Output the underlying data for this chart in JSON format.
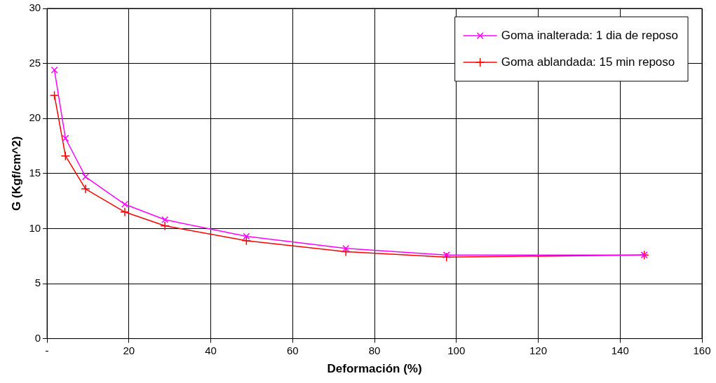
{
  "chart_data": {
    "type": "line",
    "xlabel": "Deformación (%)",
    "ylabel": "G (Kgf/cm^2)",
    "xlim": [
      0,
      160
    ],
    "xticks": [
      {
        "value": 0,
        "label": "-"
      },
      20,
      40,
      60,
      80,
      100,
      120,
      140,
      160
    ],
    "ylim": [
      0,
      30
    ],
    "yticks": [
      0,
      5,
      10,
      15,
      20,
      25,
      30
    ],
    "grid": true,
    "legend": "top right",
    "line_style": "solid",
    "series": [
      {
        "name": "Goma inalterada: 1 dia de reposo",
        "color": "#ff00ff",
        "marker": "x",
        "x": [
          1.8,
          4.5,
          9.4,
          19,
          28.8,
          48.7,
          73,
          97.6,
          145.9
        ],
        "values": [
          24.4,
          18.2,
          14.7,
          12.2,
          10.8,
          9.3,
          8.2,
          7.6,
          7.6
        ]
      },
      {
        "name": "Goma ablandada: 15 min reposo",
        "color": "#ff0000",
        "marker": "cross",
        "x": [
          1.8,
          4.5,
          9.4,
          19,
          28.8,
          48.7,
          73,
          97.6,
          145.9
        ],
        "values": [
          22.1,
          16.6,
          13.6,
          11.5,
          10.25,
          8.9,
          7.9,
          7.4,
          7.6
        ]
      }
    ]
  }
}
